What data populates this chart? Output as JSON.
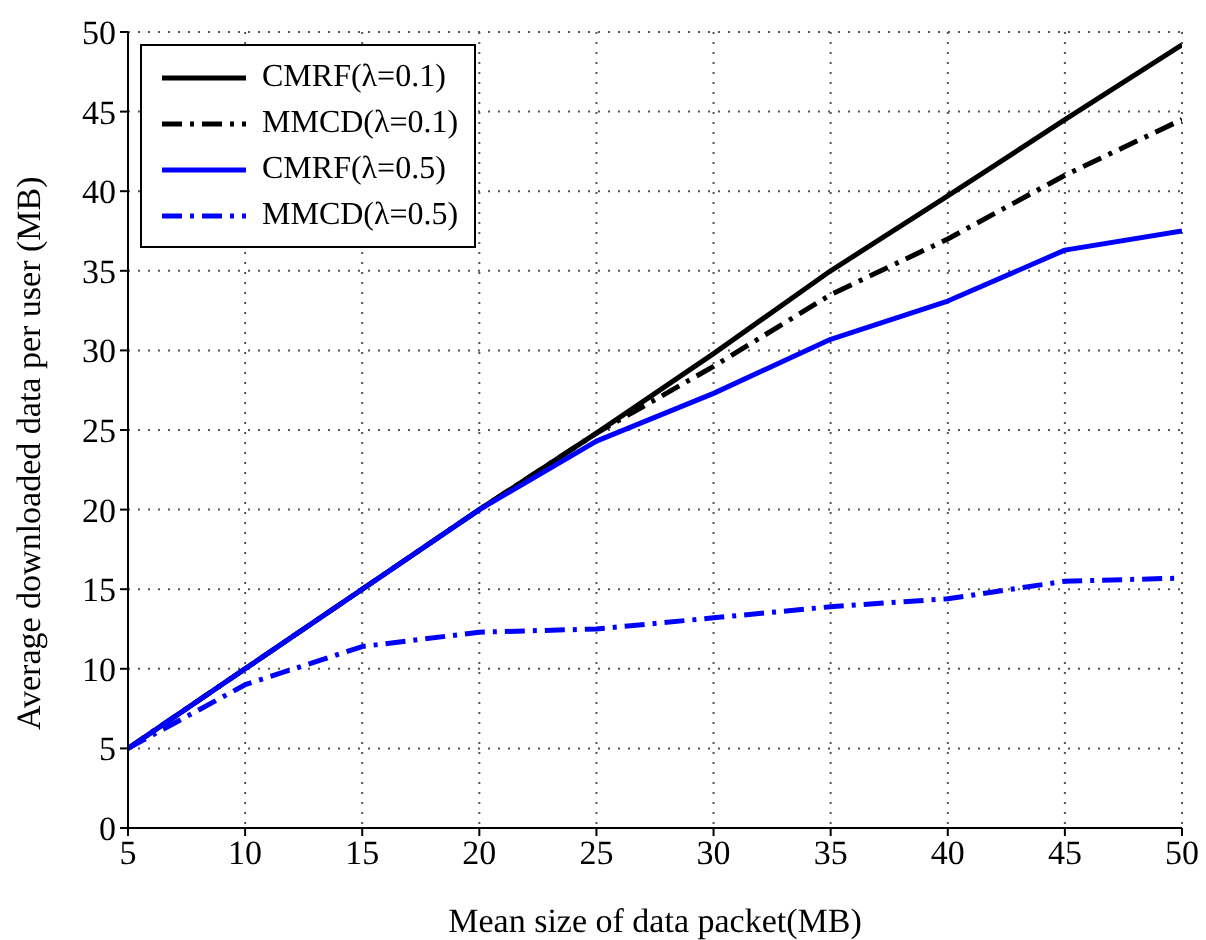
{
  "chart_data": {
    "type": "line",
    "xlabel": "Mean size of data packet(MB)",
    "ylabel": "Average downloaded data per user (MB)",
    "x": [
      5,
      10,
      15,
      20,
      25,
      30,
      35,
      40,
      45,
      50
    ],
    "series": [
      {
        "name": "CMRF(λ=0.1)",
        "color": "#000000",
        "line_style": "solid",
        "values": [
          5,
          10,
          15,
          20,
          24.8,
          29.8,
          35,
          39.7,
          44.5,
          49.2
        ]
      },
      {
        "name": "MMCD(λ=0.1)",
        "color": "#000000",
        "line_style": "dashdot",
        "values": [
          5,
          10,
          15,
          20,
          24.8,
          29,
          33.5,
          37,
          41,
          44.5
        ]
      },
      {
        "name": "CMRF(λ=0.5)",
        "color": "#0000ff",
        "line_style": "solid",
        "values": [
          5,
          10,
          15,
          20,
          24.3,
          27.3,
          30.7,
          33.1,
          36.3,
          37.5
        ]
      },
      {
        "name": "MMCD(λ=0.5)",
        "color": "#0000ff",
        "line_style": "dashdot",
        "values": [
          5,
          9,
          11.4,
          12.3,
          12.5,
          13.2,
          13.9,
          14.4,
          15.5,
          15.7
        ]
      }
    ],
    "xlim": [
      5,
      50
    ],
    "xticks": [
      5,
      10,
      15,
      20,
      25,
      30,
      35,
      40,
      45,
      50
    ],
    "ylim": [
      0,
      50
    ],
    "yticks": [
      0,
      5,
      10,
      15,
      20,
      25,
      30,
      35,
      40,
      45,
      50
    ],
    "grid": true,
    "legend": "top left",
    "marker": "none"
  }
}
